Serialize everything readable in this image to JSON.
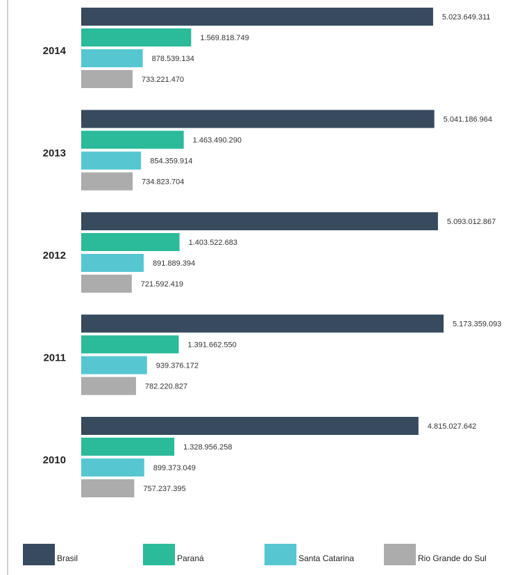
{
  "chart_data": {
    "type": "bar",
    "orientation": "horizontal",
    "categories": [
      "2014",
      "2013",
      "2012",
      "2011",
      "2010"
    ],
    "series": [
      {
        "name": "Brasil",
        "color": "#374a5e",
        "values": [
          5023649311,
          5041186964,
          5093012867,
          5173359093,
          4815027642
        ],
        "labels": [
          "5.023.649.311",
          "5.041.186.964",
          "5.093.012.867",
          "5.173.359.093",
          "4.815.027.642"
        ]
      },
      {
        "name": "Paraná",
        "color": "#2bba9a",
        "values": [
          1569818749,
          1463490290,
          1403522683,
          1391662550,
          1328956258
        ],
        "labels": [
          "1.569.818.749",
          "1.463.490.290",
          "1.403.522.683",
          "1.391.662.550",
          "1.328.956.258"
        ]
      },
      {
        "name": "Santa Catarina",
        "color": "#56c7d1",
        "values": [
          878539134,
          854359914,
          891889394,
          939376172,
          899373049
        ],
        "labels": [
          "878.539.134",
          "854.359.914",
          "891.889.394",
          "939.376.172",
          "899.373.049"
        ]
      },
      {
        "name": "Rio Grande do Sul",
        "color": "#acacac",
        "values": [
          733221470,
          734823704,
          721592419,
          782220827,
          757237395
        ],
        "labels": [
          "733.221.470",
          "734.823.704",
          "721.592.419",
          "782.220.827",
          "757.237.395"
        ]
      }
    ],
    "title": "",
    "xlabel": "",
    "ylabel": "",
    "xlim": [
      0,
      5500000000
    ],
    "grid": false,
    "legend_position": "bottom"
  }
}
